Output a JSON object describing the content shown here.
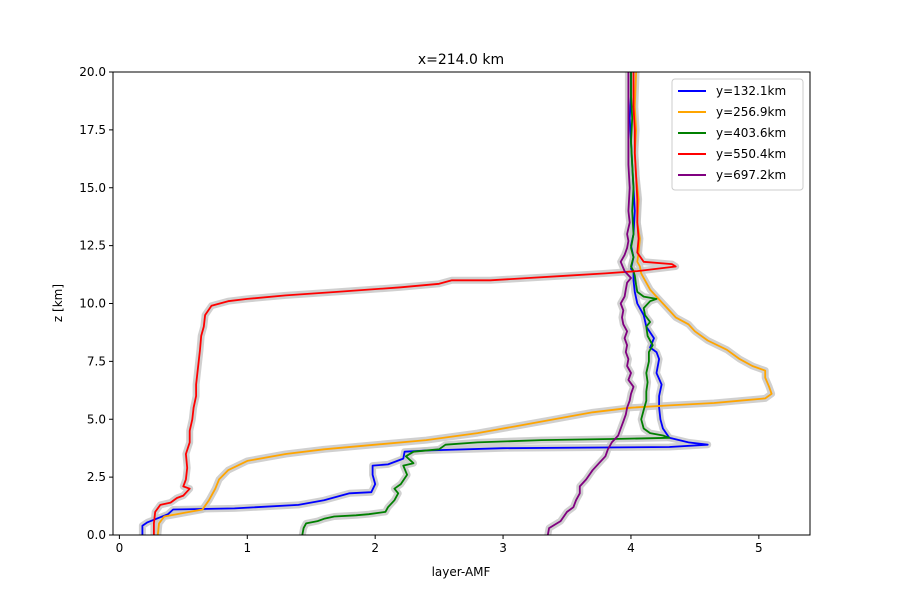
{
  "chart_data": {
    "type": "line",
    "title": "x=214.0 km",
    "xlabel": "layer-AMF",
    "ylabel": "z [km]",
    "xlim": [
      -0.05,
      5.4
    ],
    "ylim": [
      0,
      20
    ],
    "xticks": [
      0,
      1,
      2,
      3,
      4,
      5
    ],
    "xtick_labels": [
      "0",
      "1",
      "2",
      "3",
      "4",
      "5"
    ],
    "yticks": [
      0,
      2.5,
      5,
      7.5,
      10,
      12.5,
      15,
      17.5,
      20
    ],
    "ytick_labels": [
      "0.0",
      "2.5",
      "5.0",
      "7.5",
      "10.0",
      "12.5",
      "15.0",
      "17.5",
      "20.0"
    ],
    "grid": false,
    "legend_position": "top-right",
    "uncertainty_band_color": "#c8c8c8",
    "series": [
      {
        "name": "y=132.1km",
        "color": "#0000ff",
        "points": [
          [
            0.18,
            0
          ],
          [
            0.18,
            0.4
          ],
          [
            0.22,
            0.55
          ],
          [
            0.38,
            0.9
          ],
          [
            0.42,
            1.1
          ],
          [
            0.9,
            1.15
          ],
          [
            1.4,
            1.3
          ],
          [
            1.6,
            1.5
          ],
          [
            1.8,
            1.8
          ],
          [
            1.97,
            1.85
          ],
          [
            2.0,
            2.2
          ],
          [
            1.98,
            2.6
          ],
          [
            1.98,
            3.0
          ],
          [
            2.1,
            3.05
          ],
          [
            2.22,
            3.3
          ],
          [
            2.23,
            3.6
          ],
          [
            2.4,
            3.65
          ],
          [
            3.0,
            3.75
          ],
          [
            4.3,
            3.8
          ],
          [
            4.6,
            3.9
          ],
          [
            4.45,
            4.0
          ],
          [
            4.3,
            4.2
          ],
          [
            4.25,
            4.6
          ],
          [
            4.23,
            5.0
          ],
          [
            4.22,
            5.5
          ],
          [
            4.22,
            6.0
          ],
          [
            4.24,
            6.5
          ],
          [
            4.2,
            7.0
          ],
          [
            4.22,
            7.6
          ],
          [
            4.2,
            7.9
          ],
          [
            4.15,
            8.1
          ],
          [
            4.18,
            8.5
          ],
          [
            4.12,
            9.0
          ],
          [
            4.1,
            9.5
          ],
          [
            4.05,
            10.0
          ],
          [
            4.03,
            10.5
          ],
          [
            4.02,
            11.0
          ],
          [
            4.02,
            11.4
          ],
          [
            4.0,
            11.5
          ],
          [
            4.02,
            12.0
          ],
          [
            4.0,
            12.5
          ],
          [
            4.02,
            13.0
          ],
          [
            4.03,
            14.0
          ],
          [
            4.02,
            15.0
          ],
          [
            4.01,
            16.0
          ],
          [
            4.0,
            17.0
          ],
          [
            3.99,
            18.0
          ],
          [
            4.0,
            19.0
          ],
          [
            4.0,
            20.0
          ]
        ]
      },
      {
        "name": "y=256.9km",
        "color": "#ffa500",
        "points": [
          [
            0.3,
            0
          ],
          [
            0.31,
            0.5
          ],
          [
            0.35,
            0.8
          ],
          [
            0.65,
            1.1
          ],
          [
            0.7,
            1.5
          ],
          [
            0.75,
            2.0
          ],
          [
            0.78,
            2.4
          ],
          [
            0.85,
            2.8
          ],
          [
            1.0,
            3.2
          ],
          [
            1.3,
            3.5
          ],
          [
            1.6,
            3.7
          ],
          [
            2.0,
            3.9
          ],
          [
            2.4,
            4.1
          ],
          [
            2.8,
            4.4
          ],
          [
            3.1,
            4.7
          ],
          [
            3.4,
            5.0
          ],
          [
            3.7,
            5.3
          ],
          [
            4.0,
            5.5
          ],
          [
            4.3,
            5.6
          ],
          [
            4.65,
            5.7
          ],
          [
            4.85,
            5.8
          ],
          [
            5.05,
            5.9
          ],
          [
            5.1,
            6.1
          ],
          [
            5.08,
            6.4
          ],
          [
            5.05,
            6.8
          ],
          [
            5.05,
            7.1
          ],
          [
            4.95,
            7.3
          ],
          [
            4.85,
            7.6
          ],
          [
            4.75,
            8.0
          ],
          [
            4.6,
            8.4
          ],
          [
            4.5,
            8.8
          ],
          [
            4.45,
            9.1
          ],
          [
            4.35,
            9.4
          ],
          [
            4.3,
            9.7
          ],
          [
            4.25,
            10.0
          ],
          [
            4.2,
            10.3
          ],
          [
            4.15,
            10.6
          ],
          [
            4.12,
            10.9
          ],
          [
            4.1,
            11.1
          ],
          [
            4.08,
            11.3
          ],
          [
            4.07,
            11.6
          ],
          [
            4.05,
            11.8
          ],
          [
            4.06,
            12.2
          ],
          [
            4.07,
            12.8
          ],
          [
            4.05,
            13.5
          ],
          [
            4.06,
            14.5
          ],
          [
            4.04,
            15.5
          ],
          [
            4.03,
            16.5
          ],
          [
            4.04,
            17.5
          ],
          [
            4.03,
            18.5
          ],
          [
            4.04,
            20.0
          ]
        ]
      },
      {
        "name": "y=403.6km",
        "color": "#008000",
        "points": [
          [
            1.43,
            0
          ],
          [
            1.44,
            0.3
          ],
          [
            1.46,
            0.5
          ],
          [
            1.55,
            0.6
          ],
          [
            1.6,
            0.7
          ],
          [
            1.68,
            0.8
          ],
          [
            1.85,
            0.85
          ],
          [
            1.95,
            0.9
          ],
          [
            2.08,
            1.0
          ],
          [
            2.1,
            1.2
          ],
          [
            2.15,
            1.5
          ],
          [
            2.18,
            1.8
          ],
          [
            2.15,
            2.0
          ],
          [
            2.2,
            2.2
          ],
          [
            2.25,
            2.6
          ],
          [
            2.22,
            3.0
          ],
          [
            2.3,
            3.1
          ],
          [
            2.24,
            3.4
          ],
          [
            2.3,
            3.6
          ],
          [
            2.5,
            3.7
          ],
          [
            2.55,
            3.9
          ],
          [
            2.8,
            4.0
          ],
          [
            3.3,
            4.1
          ],
          [
            3.9,
            4.15
          ],
          [
            4.3,
            4.2
          ],
          [
            4.25,
            4.3
          ],
          [
            4.15,
            4.4
          ],
          [
            4.1,
            4.6
          ],
          [
            4.08,
            5.0
          ],
          [
            4.1,
            5.4
          ],
          [
            4.12,
            5.8
          ],
          [
            4.12,
            6.2
          ],
          [
            4.13,
            6.6
          ],
          [
            4.12,
            7.0
          ],
          [
            4.14,
            7.5
          ],
          [
            4.14,
            7.9
          ],
          [
            4.17,
            8.2
          ],
          [
            4.13,
            8.6
          ],
          [
            4.12,
            9.0
          ],
          [
            4.15,
            9.2
          ],
          [
            4.11,
            9.5
          ],
          [
            4.1,
            9.8
          ],
          [
            4.15,
            10.1
          ],
          [
            4.2,
            10.2
          ],
          [
            4.1,
            10.3
          ],
          [
            4.05,
            10.5
          ],
          [
            4.04,
            10.8
          ],
          [
            4.03,
            11.2
          ],
          [
            4.02,
            11.4
          ],
          [
            4.0,
            11.6
          ],
          [
            4.02,
            12.0
          ],
          [
            4.0,
            12.4
          ],
          [
            4.02,
            13.0
          ],
          [
            4.01,
            14.0
          ],
          [
            4.02,
            15.0
          ],
          [
            4.01,
            16.0
          ],
          [
            4.0,
            17.0
          ],
          [
            4.01,
            18.0
          ],
          [
            4.0,
            19.0
          ],
          [
            4.0,
            20.0
          ]
        ]
      },
      {
        "name": "y=550.4km",
        "color": "#ff0000",
        "points": [
          [
            0.27,
            0
          ],
          [
            0.27,
            0.5
          ],
          [
            0.28,
            1.0
          ],
          [
            0.32,
            1.3
          ],
          [
            0.4,
            1.4
          ],
          [
            0.45,
            1.6
          ],
          [
            0.5,
            1.7
          ],
          [
            0.55,
            2.0
          ],
          [
            0.5,
            2.1
          ],
          [
            0.52,
            2.4
          ],
          [
            0.53,
            2.9
          ],
          [
            0.52,
            3.5
          ],
          [
            0.55,
            4.0
          ],
          [
            0.55,
            4.5
          ],
          [
            0.57,
            5.0
          ],
          [
            0.58,
            5.5
          ],
          [
            0.6,
            6.0
          ],
          [
            0.6,
            6.5
          ],
          [
            0.61,
            7.0
          ],
          [
            0.62,
            7.5
          ],
          [
            0.63,
            8.0
          ],
          [
            0.64,
            8.6
          ],
          [
            0.66,
            9.0
          ],
          [
            0.67,
            9.5
          ],
          [
            0.72,
            9.9
          ],
          [
            0.85,
            10.1
          ],
          [
            1.0,
            10.2
          ],
          [
            1.3,
            10.35
          ],
          [
            1.7,
            10.5
          ],
          [
            2.2,
            10.7
          ],
          [
            2.5,
            10.85
          ],
          [
            2.6,
            11.0
          ],
          [
            2.9,
            11.0
          ],
          [
            3.2,
            11.1
          ],
          [
            3.5,
            11.2
          ],
          [
            3.8,
            11.3
          ],
          [
            4.05,
            11.4
          ],
          [
            4.35,
            11.6
          ],
          [
            4.32,
            11.7
          ],
          [
            4.1,
            11.8
          ],
          [
            4.05,
            12.2
          ],
          [
            4.06,
            12.8
          ],
          [
            4.05,
            13.5
          ],
          [
            4.05,
            14.5
          ],
          [
            4.04,
            15.5
          ],
          [
            4.03,
            16.5
          ],
          [
            4.03,
            17.5
          ],
          [
            4.02,
            18.5
          ],
          [
            4.02,
            20.0
          ]
        ]
      },
      {
        "name": "y=697.2km",
        "color": "#800080",
        "points": [
          [
            3.35,
            0
          ],
          [
            3.36,
            0.3
          ],
          [
            3.45,
            0.6
          ],
          [
            3.5,
            1.0
          ],
          [
            3.55,
            1.2
          ],
          [
            3.57,
            1.5
          ],
          [
            3.6,
            1.8
          ],
          [
            3.6,
            2.1
          ],
          [
            3.65,
            2.4
          ],
          [
            3.7,
            2.8
          ],
          [
            3.75,
            3.1
          ],
          [
            3.8,
            3.4
          ],
          [
            3.82,
            3.7
          ],
          [
            3.85,
            4.0
          ],
          [
            3.9,
            4.3
          ],
          [
            3.92,
            4.6
          ],
          [
            3.94,
            4.9
          ],
          [
            3.96,
            5.2
          ],
          [
            3.97,
            5.5
          ],
          [
            3.99,
            5.8
          ],
          [
            4.0,
            6.1
          ],
          [
            4.02,
            6.4
          ],
          [
            3.98,
            6.7
          ],
          [
            4.0,
            7.0
          ],
          [
            3.97,
            7.3
          ],
          [
            3.98,
            7.6
          ],
          [
            3.96,
            7.9
          ],
          [
            3.97,
            8.2
          ],
          [
            3.95,
            8.5
          ],
          [
            3.97,
            8.8
          ],
          [
            3.94,
            9.1
          ],
          [
            3.93,
            9.4
          ],
          [
            3.94,
            9.7
          ],
          [
            3.92,
            10.0
          ],
          [
            3.95,
            10.3
          ],
          [
            3.96,
            10.6
          ],
          [
            3.97,
            10.9
          ],
          [
            4.0,
            11.1
          ],
          [
            3.95,
            11.4
          ],
          [
            3.92,
            11.8
          ],
          [
            3.95,
            12.1
          ],
          [
            3.97,
            12.4
          ],
          [
            3.98,
            12.7
          ],
          [
            3.97,
            13.0
          ],
          [
            3.99,
            13.5
          ],
          [
            3.98,
            14.0
          ],
          [
            3.99,
            15.0
          ],
          [
            3.98,
            16.0
          ],
          [
            3.98,
            17.0
          ],
          [
            3.98,
            18.0
          ],
          [
            3.98,
            19.0
          ],
          [
            3.98,
            20.0
          ]
        ]
      }
    ]
  }
}
